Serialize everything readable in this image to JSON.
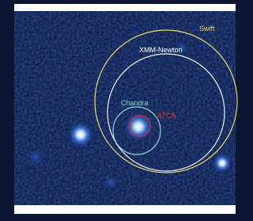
{
  "annotations": [
    {
      "label": "Swift"
    },
    {
      "label": "XMM-Newton"
    },
    {
      "label": "Chandra"
    },
    {
      "label": "ATCA"
    }
  ]
}
